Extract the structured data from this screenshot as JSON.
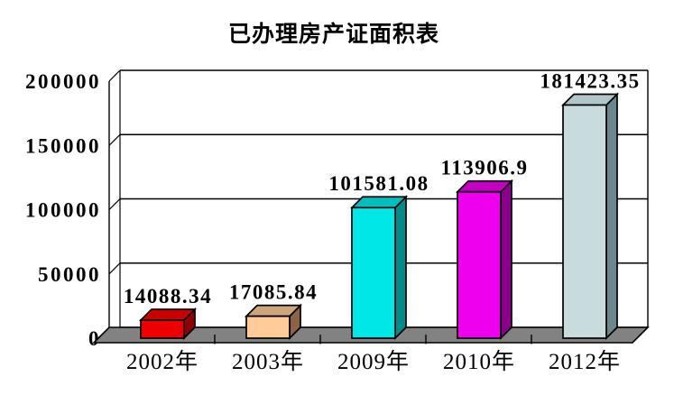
{
  "chart_data": {
    "type": "bar",
    "style": "3d-bar",
    "title": "已办理房产证面积表",
    "categories": [
      "2002年",
      "2003年",
      "2009年",
      "2010年",
      "2012年"
    ],
    "values": [
      14088.34,
      17085.84,
      101581.08,
      113906.9,
      181423.35
    ],
    "value_labels": [
      "14088.34",
      "17085.84",
      "101581.08",
      "113906.9",
      "181423.35"
    ],
    "xlabel": "",
    "ylabel": "",
    "ylim": [
      0,
      200000
    ],
    "ytick_interval": 50000,
    "ytick_labels": [
      "0",
      "50000",
      "100000",
      "150000",
      "200000"
    ],
    "grid": true,
    "legend_position": "none",
    "colors": {
      "background": "#ffffff",
      "wall": "#ffffff",
      "floor": "#828282",
      "axis": "#000000",
      "text": "#000000",
      "bars": [
        {
          "front": "#ee0000",
          "top": "#c80000",
          "side": "#8f0000"
        },
        {
          "front": "#ffcc99",
          "top": "#cfa679",
          "side": "#8b6347"
        },
        {
          "front": "#00e7e7",
          "top": "#00bfbf",
          "side": "#008b8b"
        },
        {
          "front": "#ee00ee",
          "top": "#c400c4",
          "side": "#8b008b"
        },
        {
          "front": "#c8dcde",
          "top": "#afc6ca",
          "side": "#6b878d"
        }
      ]
    }
  }
}
